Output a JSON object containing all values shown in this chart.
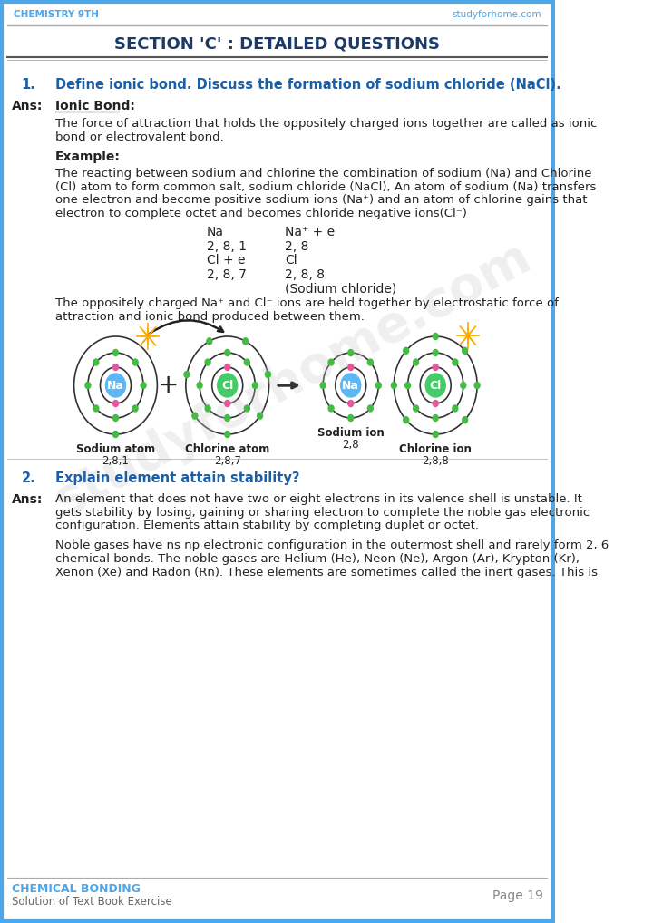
{
  "page_border_color": "#4da6e8",
  "header_text_left": "CHEMISTRY 9TH",
  "header_text_right": "studyforhome.com",
  "header_color": "#4da6e8",
  "title": "SECTION 'C' : DETAILED QUESTIONS",
  "title_color": "#1a3a6b",
  "q1_number": "1.",
  "q1_text": "Define ionic bond. Discuss the formation of sodium chloride (NaCl).",
  "q1_color": "#1a5fa8",
  "ans_label": "Ans:",
  "ionic_bond_label": "Ionic Bond:",
  "para1": "The force of attraction that holds the oppositely charged ions together are called as ionic\nbond or electrovalent bond.",
  "example_label": "Example:",
  "para2_lines": [
    "The reacting between sodium and chlorine the combination of sodium (Na) and Chlorine",
    "(Cl) atom to form common salt, sodium chloride (NaCl), An atom of sodium (Na) transfers",
    "one electron and become positive sodium ions (Na⁺) and an atom of chlorine gains that",
    "electron to complete octet and becomes chloride negative ions(Cl⁻)"
  ],
  "equation_lines": [
    [
      "Na",
      "Na⁺ + e"
    ],
    [
      "2, 8, 1",
      "2, 8"
    ],
    [
      "Cl + e",
      "Cl"
    ],
    [
      "2, 8, 7",
      "2, 8, 8"
    ],
    [
      "",
      "(Sodium chloride)"
    ]
  ],
  "para3_lines": [
    "The oppositely charged Na⁺ and Cl⁻ ions are held together by electrostatic force of",
    "attraction and ionic bond produced between them."
  ],
  "q2_number": "2.",
  "q2_text": "Explain element attain stability?",
  "q2_color": "#1a5fa8",
  "ans2_para1_lines": [
    "An element that does not have two or eight electrons in its valence shell is unstable. It",
    "gets stability by losing, gaining or sharing electron to complete the noble gas electronic",
    "configuration. Elements attain stability by completing duplet or octet."
  ],
  "ans2_para2_lines": [
    "Noble gases have ns np electronic configuration in the outermost shell and rarely form 2, 6",
    "chemical bonds. The noble gases are Helium (He), Neon (Ne), Argon (Ar), Krypton (Kr),",
    "Xenon (Xe) and Radon (Rn). These elements are sometimes called the inert gases. This is"
  ],
  "footer_left_top": "CHEMICAL BONDING",
  "footer_left_bottom": "Solution of Text Book Exercise",
  "footer_right": "Page 19",
  "footer_color": "#4da6e8",
  "watermark_text": "studyforhome.com",
  "text_color": "#222222",
  "body_font_size": 9.5,
  "nucleus_na_color": "#5bb8f5",
  "nucleus_cl_color": "#44cc66",
  "dot_pink": "#e8559a",
  "dot_green": "#44bb44",
  "spark_color": "#ffaa00"
}
